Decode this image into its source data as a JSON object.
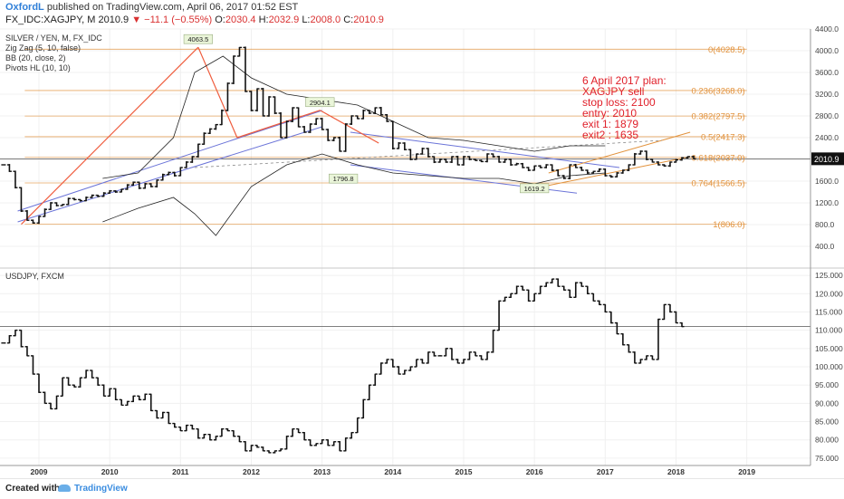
{
  "header": {
    "author": "OxfordL",
    "published": " published on TradingView.com, April 06, 2017 01:52 EST",
    "symbol": "FX_IDC:XAGJPY, M",
    "last": "2010.9",
    "change": "▼ −11.1 (−0.55%)",
    "o_label": "O:",
    "o_value": "2030.4",
    "h_label": "H:",
    "h_value": "2032.9",
    "l_label": "L:",
    "l_value": "2008.0",
    "c_label": "C:",
    "c_value": "2010.9"
  },
  "top_pane": {
    "legend": [
      "SILVER / YEN, M, FX_IDC",
      "Zig Zag (5, 10, false)",
      "BB (20, close, 2)",
      "Pivots HL (10, 10)"
    ],
    "price_tag": "2010.9",
    "annotation": [
      "6 April 2017  plan:",
      "XAGJPY sell",
      "stop loss: 2100",
      "entry: 2010",
      "exit 1:  1879",
      "exit2 : 1635"
    ],
    "pivot_labels": [
      {
        "text": "4063.5",
        "x": 2011.25,
        "y": 4063.5
      },
      {
        "text": "2904.1",
        "x": 2012.97,
        "y": 2904.1
      },
      {
        "text": "1796.8",
        "x": 2013.3,
        "y": 1796.8
      },
      {
        "text": "1619.2",
        "x": 2016.0,
        "y": 1619.2
      }
    ],
    "fib_levels": [
      {
        "label": "0(4028.5)",
        "value": 4028.5
      },
      {
        "label": "0.236(3268.0)",
        "value": 3268.0
      },
      {
        "label": "0.382(2797.5)",
        "value": 2797.5
      },
      {
        "label": "0.5(2417.3)",
        "value": 2417.3
      },
      {
        "label": "0.618(2037.0)",
        "value": 2037.0
      },
      {
        "label": "0.764(1566.5)",
        "value": 1566.5
      },
      {
        "label": "1(806.0)",
        "value": 806.0
      }
    ]
  },
  "bottom_pane": {
    "legend": "USDJPY, FXCM"
  },
  "footer": {
    "created_with": "Created with",
    "brand": "TradingView"
  },
  "colors": {
    "fib": "#e2923c",
    "zigzag": "#ef5b3c",
    "channel": "#6b74d8",
    "annotation": "#e0202a",
    "bars": "#111111"
  },
  "chart_data": [
    {
      "type": "ohlc",
      "name": "SILVER / YEN, M, FX_IDC",
      "ylim": [
        0,
        4400
      ],
      "yticks": [
        400,
        800,
        1200,
        1600,
        2000,
        2400,
        2800,
        3200,
        3600,
        4000,
        4400
      ],
      "xticks": [
        "2009",
        "2010",
        "2011",
        "2012",
        "2013",
        "2014",
        "2015",
        "2016",
        "2017",
        "2018",
        "2019"
      ],
      "x_range": [
        2008.45,
        2019.9
      ],
      "x_start": 2008.5,
      "closes": [
        1900,
        1780,
        1480,
        1050,
        880,
        830,
        950,
        1080,
        1200,
        1150,
        1170,
        1280,
        1260,
        1240,
        1300,
        1340,
        1320,
        1380,
        1420,
        1400,
        1450,
        1530,
        1580,
        1470,
        1550,
        1500,
        1620,
        1720,
        1760,
        1700,
        1850,
        1950,
        2050,
        2280,
        2480,
        2560,
        2640,
        2900,
        3400,
        3900,
        4060,
        3250,
        2900,
        3300,
        2800,
        3150,
        2850,
        2400,
        2700,
        2950,
        2600,
        2500,
        2650,
        2750,
        2550,
        2350,
        2400,
        2150,
        2650,
        2800,
        2750,
        2900,
        2850,
        2950,
        2820,
        2700,
        2200,
        2300,
        2180,
        2000,
        2100,
        2200,
        2050,
        1950,
        2000,
        1950,
        2050,
        1900,
        2050,
        2000,
        1980,
        1960,
        2100,
        2050,
        1950,
        2000,
        1900,
        1920,
        1850,
        1800,
        1880,
        1850,
        1900,
        1800,
        1700,
        1650,
        1900,
        1850,
        1800,
        1750,
        1780,
        1820,
        1700,
        1680,
        1750,
        1800,
        1900,
        2100,
        2150,
        2000,
        1950,
        1900,
        1880,
        1950,
        1990,
        2030,
        2050,
        2010
      ],
      "label_points": [
        {
          "x": 2017.25,
          "y": 2010.9
        }
      ]
    },
    {
      "type": "ohlc",
      "name": "USDJPY, FXCM",
      "ylim": [
        73,
        127
      ],
      "yticks": [
        75,
        80,
        85,
        90,
        95,
        100,
        105,
        110,
        115,
        120,
        125
      ],
      "xticks": [
        "2009",
        "2010",
        "2011",
        "2012",
        "2013",
        "2014",
        "2015",
        "2016",
        "2017",
        "2018",
        "2019"
      ],
      "x_range": [
        2008.45,
        2019.9
      ],
      "x_start": 2008.5,
      "closes": [
        106.5,
        108.5,
        110,
        105.5,
        103,
        98,
        93,
        90,
        88.5,
        92,
        97,
        95,
        94.5,
        97,
        99,
        97,
        95,
        92,
        94,
        91,
        89.5,
        90.5,
        92,
        91,
        92.5,
        88,
        86,
        87.5,
        84.5,
        83.5,
        82.5,
        84,
        83,
        80.5,
        81.5,
        80,
        81,
        83,
        82.5,
        81,
        79.5,
        77,
        78.5,
        78,
        77,
        76.5,
        77,
        77.5,
        81,
        83,
        82,
        80,
        78.5,
        79,
        80,
        78.5,
        79.5,
        77,
        80.5,
        82,
        86,
        91,
        95,
        98,
        101,
        102,
        100,
        98,
        99,
        100,
        102,
        101,
        104,
        103,
        103,
        105,
        102,
        101,
        102,
        104,
        103,
        102,
        104,
        110,
        118,
        119,
        120,
        122,
        121,
        118,
        120,
        122,
        123,
        124,
        122,
        121,
        119,
        123,
        122,
        120,
        118,
        117,
        115,
        112,
        109,
        106,
        104,
        101,
        102,
        103,
        102,
        113,
        117,
        115,
        112,
        111
      ]
    }
  ]
}
